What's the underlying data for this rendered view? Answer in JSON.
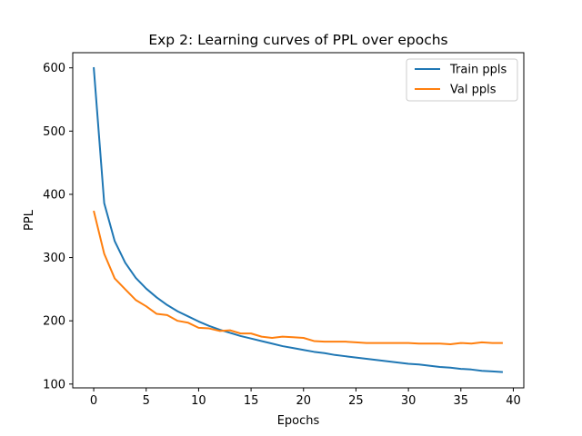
{
  "chart_data": {
    "type": "line",
    "title": "Exp 2: Learning curves of PPL over epochs",
    "xlabel": "Epochs",
    "ylabel": "PPL",
    "xlim": [
      -2,
      41
    ],
    "ylim": [
      94,
      624
    ],
    "xticks": [
      0,
      5,
      10,
      15,
      20,
      25,
      30,
      35,
      40
    ],
    "yticks": [
      100,
      200,
      300,
      400,
      500,
      600
    ],
    "grid": false,
    "legend_position": "top-right",
    "x": [
      0,
      1,
      2,
      3,
      4,
      5,
      6,
      7,
      8,
      9,
      10,
      11,
      12,
      13,
      14,
      15,
      16,
      17,
      18,
      19,
      20,
      21,
      22,
      23,
      24,
      25,
      26,
      27,
      28,
      29,
      30,
      31,
      32,
      33,
      34,
      35,
      36,
      37,
      38,
      39
    ],
    "series": [
      {
        "name": "Train ppls",
        "color": "#1f77b4",
        "values": [
          601,
          386,
          326,
          292,
          268,
          251,
          237,
          225,
          215,
          207,
          199,
          192,
          186,
          181,
          176,
          172,
          168,
          164,
          160,
          157,
          154,
          151,
          149,
          146,
          144,
          142,
          140,
          138,
          136,
          134,
          132,
          131,
          129,
          127,
          126,
          124,
          123,
          121,
          120,
          119
        ]
      },
      {
        "name": "Val ppls",
        "color": "#ff7f0e",
        "values": [
          374,
          306,
          267,
          250,
          233,
          223,
          211,
          209,
          200,
          197,
          189,
          188,
          184,
          185,
          180,
          180,
          175,
          173,
          175,
          174,
          173,
          168,
          167,
          167,
          167,
          166,
          165,
          165,
          165,
          165,
          165,
          164,
          164,
          164,
          163,
          165,
          164,
          166,
          165,
          165
        ]
      }
    ]
  }
}
